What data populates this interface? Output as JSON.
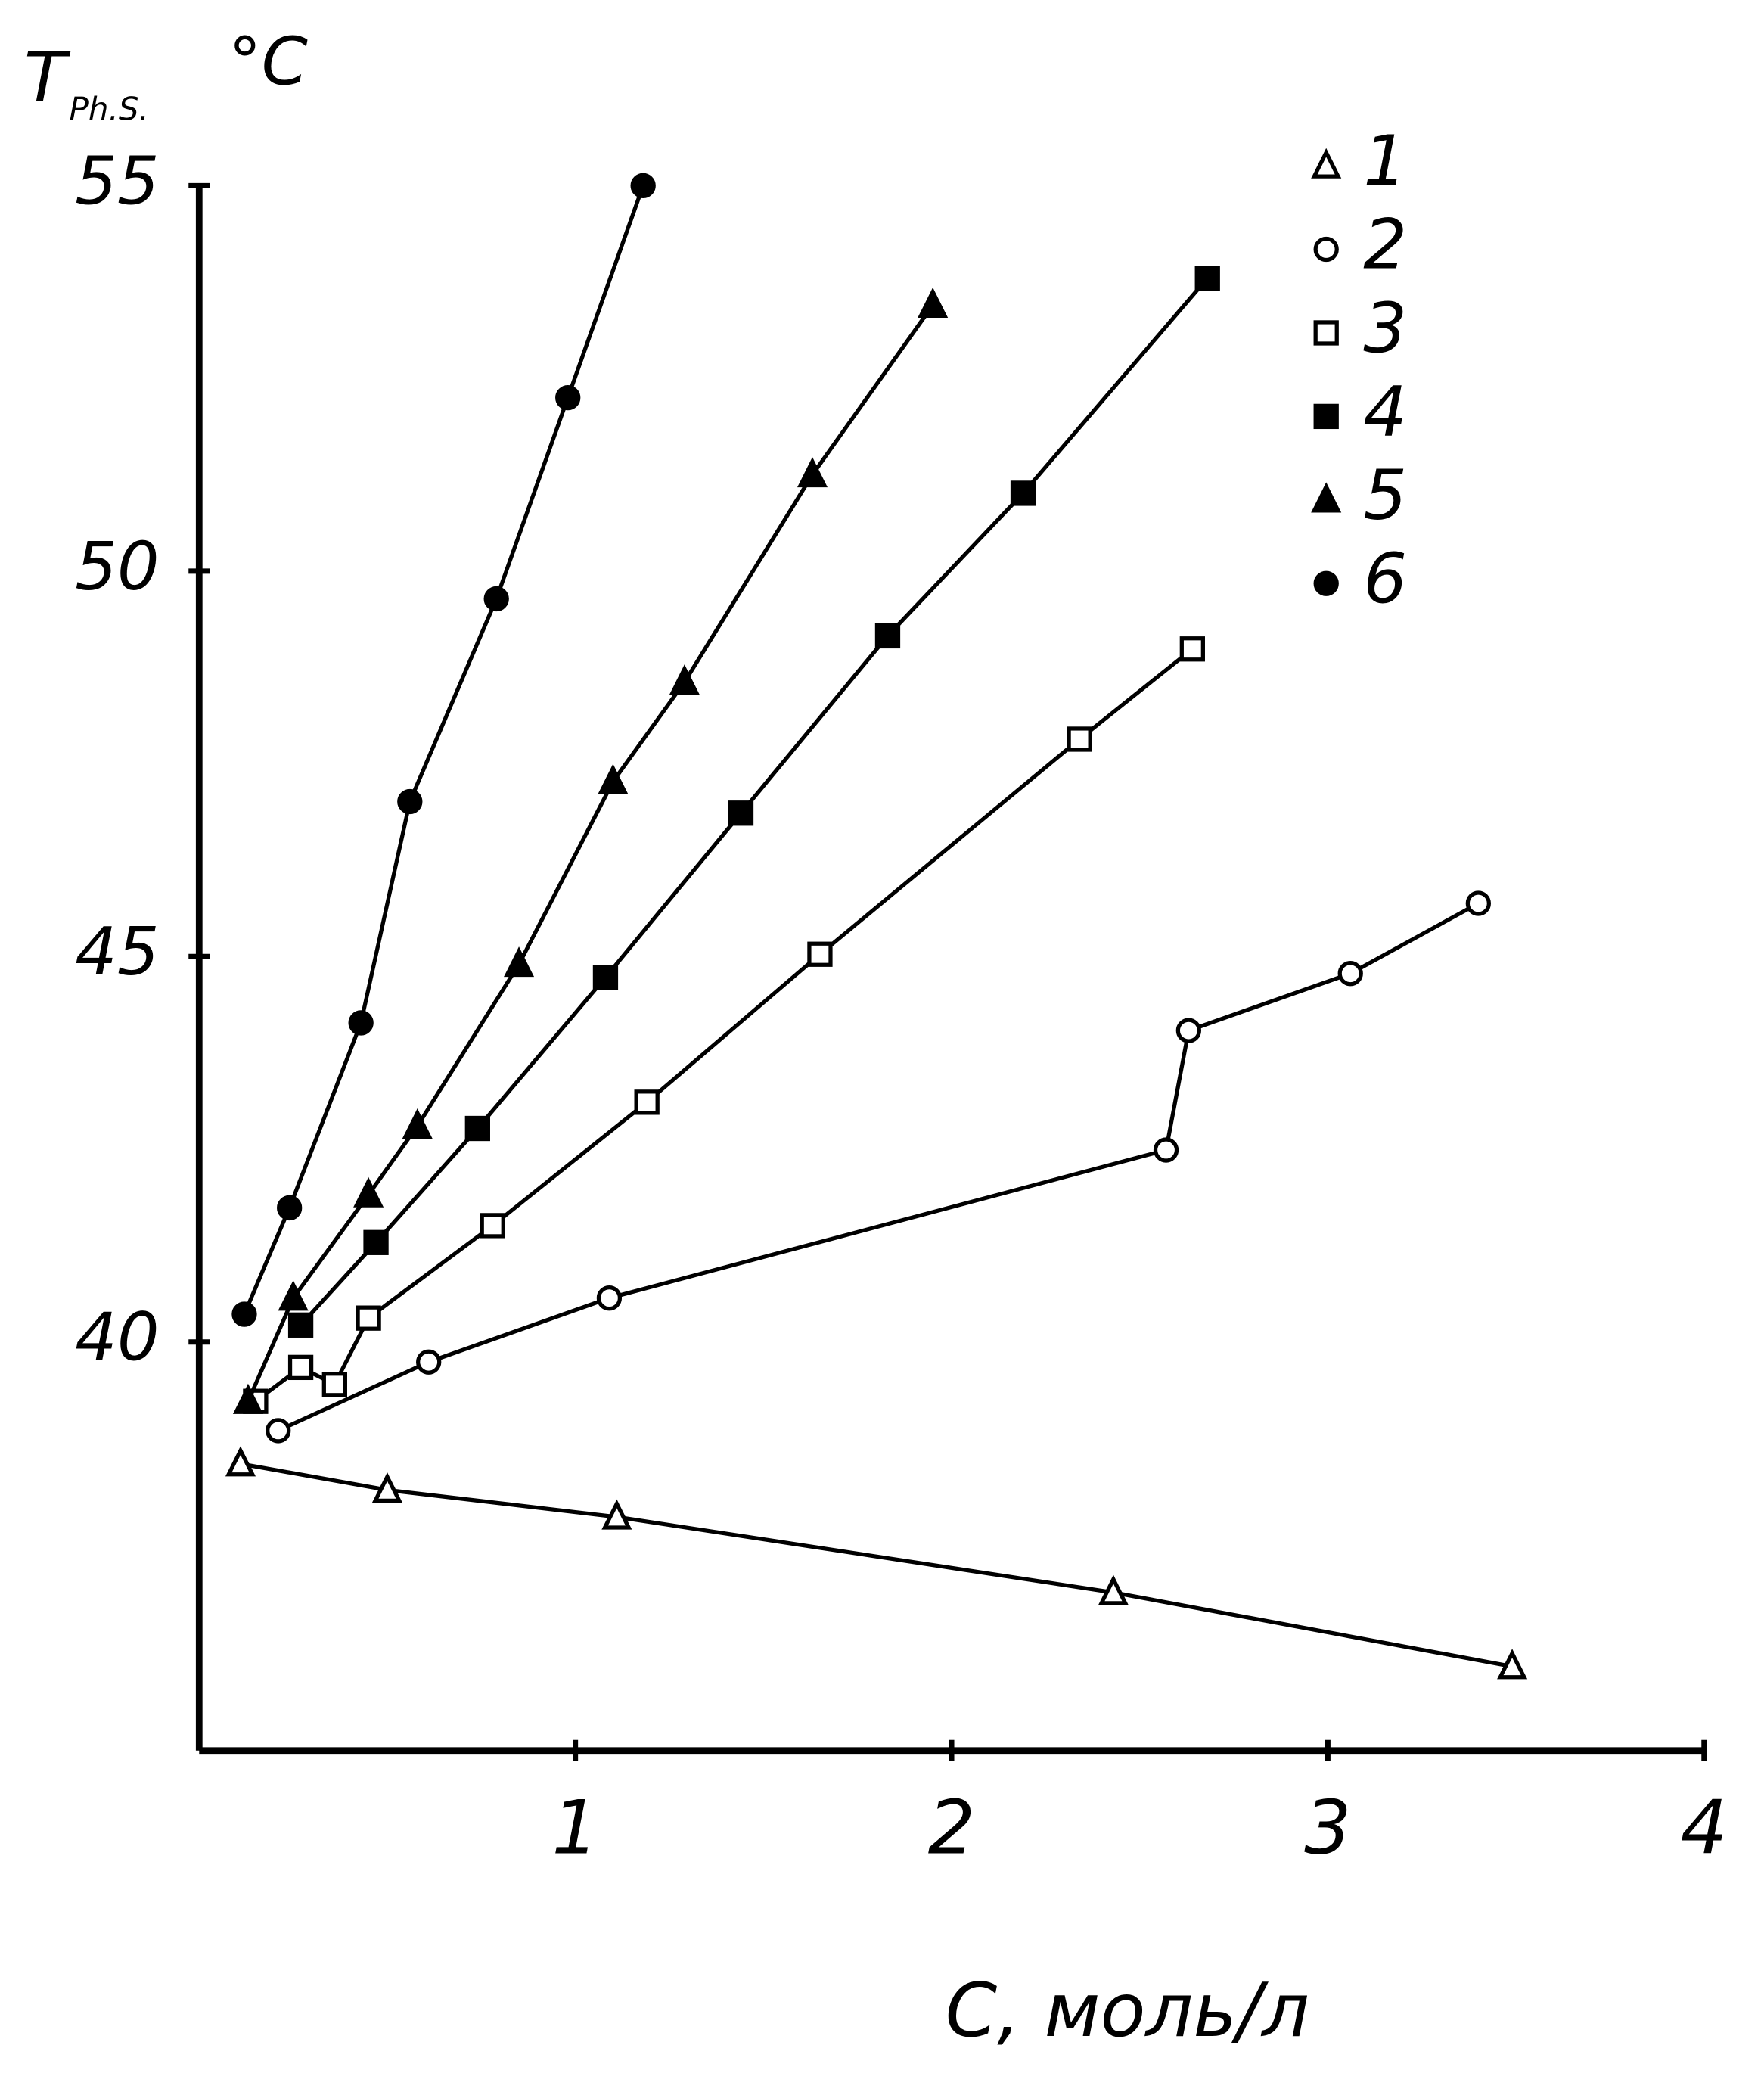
{
  "chart_data": {
    "type": "line",
    "y_label": "T",
    "y_label_subscript": "Ph.S.",
    "y_unit": "°C",
    "x_label": "C, моль/л",
    "xlim": [
      0,
      4
    ],
    "xticks": [
      1,
      2,
      3,
      4
    ],
    "ylim": [
      34.7,
      55
    ],
    "yticks": [
      40,
      45,
      50,
      55
    ],
    "legend": "top-right",
    "series": [
      {
        "name": "1",
        "color": "#000000",
        "marker": "triangle-open",
        "x": [
          0.11,
          0.5,
          1.11,
          2.43,
          3.49
        ],
        "values": [
          38.42,
          38.08,
          37.73,
          36.75,
          35.79
        ]
      },
      {
        "name": "2",
        "color": "#000000",
        "marker": "circle-open",
        "x": [
          0.21,
          0.61,
          1.09,
          2.57,
          2.63,
          3.06,
          3.4
        ],
        "values": [
          38.85,
          39.74,
          40.57,
          42.49,
          44.04,
          44.78,
          45.69
        ]
      },
      {
        "name": "3",
        "color": "#000000",
        "marker": "square-open",
        "x": [
          0.15,
          0.27,
          0.36,
          0.45,
          0.78,
          1.19,
          1.65,
          2.34,
          2.64
        ],
        "values": [
          39.23,
          39.67,
          39.45,
          40.31,
          41.51,
          43.11,
          45.03,
          47.82,
          48.99
        ]
      },
      {
        "name": "4",
        "color": "#000000",
        "marker": "square",
        "x": [
          0.27,
          0.47,
          0.74,
          1.08,
          1.44,
          1.83,
          2.19,
          2.68
        ],
        "values": [
          40.22,
          41.29,
          42.77,
          44.73,
          46.86,
          49.16,
          51.01,
          53.8
        ]
      },
      {
        "name": "5",
        "color": "#000000",
        "marker": "triangle",
        "x": [
          0.13,
          0.25,
          0.45,
          0.58,
          0.85,
          1.1,
          1.29,
          1.63,
          1.95
        ],
        "values": [
          39.23,
          40.57,
          41.91,
          42.8,
          44.9,
          47.27,
          48.56,
          51.25,
          53.45
        ]
      },
      {
        "name": "6",
        "color": "#000000",
        "marker": "circle",
        "x": [
          0.12,
          0.24,
          0.43,
          0.56,
          0.79,
          0.98,
          1.18
        ],
        "values": [
          40.36,
          41.74,
          44.14,
          47.01,
          49.64,
          52.25,
          55.0
        ]
      }
    ]
  }
}
